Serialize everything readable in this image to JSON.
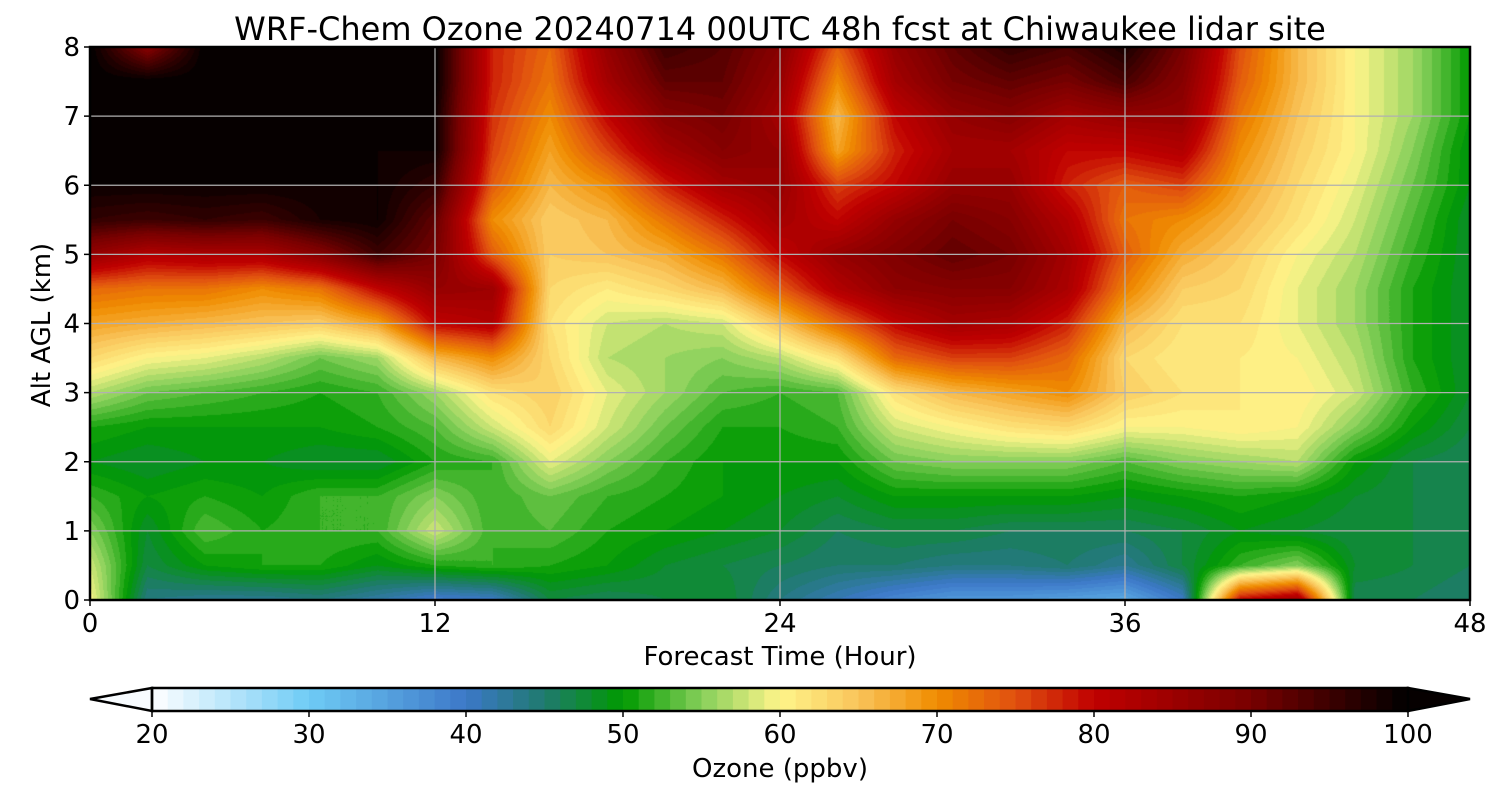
{
  "chart_data": {
    "type": "heatmap",
    "title": "WRF-Chem Ozone  20240714 00UTC 48h fcst at Chiwaukee lidar site",
    "xlabel": "Forecast Time (Hour)",
    "ylabel": "Alt AGL (km)",
    "xlim": [
      0,
      48
    ],
    "ylim": [
      0,
      8
    ],
    "x_ticks": [
      "0",
      "12",
      "24",
      "36",
      "48"
    ],
    "y_ticks": [
      "0",
      "1",
      "2",
      "3",
      "4",
      "5",
      "6",
      "7",
      "8"
    ],
    "grid": true,
    "colorbar": {
      "label": "Ozone  (ppbv)",
      "min": 20,
      "max": 100,
      "step": 1,
      "extend": "both",
      "ticks": [
        "20",
        "30",
        "40",
        "50",
        "60",
        "70",
        "80",
        "90",
        "100"
      ],
      "colormap": [
        [
          20,
          "#ffffff"
        ],
        [
          30,
          "#6ecbf5"
        ],
        [
          40,
          "#3c78c8"
        ],
        [
          45,
          "#1f7a6e"
        ],
        [
          50,
          "#009a00"
        ],
        [
          55,
          "#86cf5a"
        ],
        [
          60,
          "#fff58a"
        ],
        [
          65,
          "#f9c45a"
        ],
        [
          70,
          "#f08c00"
        ],
        [
          75,
          "#e05010"
        ],
        [
          80,
          "#c00000"
        ],
        [
          90,
          "#780000"
        ],
        [
          100,
          "#000000"
        ]
      ]
    },
    "field_grid": {
      "x": [
        0,
        2,
        4,
        6,
        8,
        10,
        12,
        14,
        16,
        18,
        20,
        22,
        24,
        26,
        28,
        30,
        32,
        34,
        36,
        38,
        40,
        42,
        44,
        46,
        48
      ],
      "z": [
        0,
        0.5,
        1,
        1.5,
        2,
        2.5,
        3,
        3.5,
        4,
        4.5,
        5,
        5.5,
        6,
        6.5,
        7,
        7.5,
        8
      ],
      "values": [
        [
          60,
          44,
          43,
          43,
          44,
          42,
          39,
          40,
          47,
          46,
          47,
          48,
          44,
          41,
          38,
          36,
          36,
          35,
          34,
          40,
          80,
          85,
          46,
          46,
          45
        ],
        [
          58,
          47,
          50,
          51,
          51,
          49,
          51,
          52,
          51,
          50,
          48,
          47,
          46,
          45,
          45,
          44,
          44,
          45,
          43,
          47,
          52,
          55,
          48,
          47,
          46
        ],
        [
          55,
          48,
          53,
          51,
          52,
          52,
          58,
          52,
          53,
          51,
          50,
          49,
          48,
          46,
          47,
          47,
          46,
          46,
          46,
          47,
          49,
          48,
          47,
          47,
          46
        ],
        [
          52,
          50,
          51,
          50,
          52,
          52,
          55,
          52,
          54,
          52,
          51,
          50,
          49,
          48,
          50,
          50,
          50,
          50,
          49,
          50,
          51,
          50,
          48,
          47,
          46
        ],
        [
          49,
          48,
          49,
          49,
          48,
          48,
          51,
          52,
          59,
          55,
          52,
          50,
          50,
          50,
          54,
          55,
          55,
          55,
          53,
          55,
          56,
          57,
          50,
          47,
          46
        ],
        [
          51,
          50,
          50,
          50,
          50,
          51,
          53,
          58,
          63,
          58,
          54,
          51,
          51,
          52,
          58,
          60,
          62,
          63,
          60,
          60,
          61,
          60,
          55,
          50,
          47
        ],
        [
          57,
          54,
          53,
          52,
          51,
          52,
          56,
          62,
          64,
          59,
          56,
          53,
          52,
          53,
          62,
          66,
          68,
          70,
          64,
          62,
          61,
          61,
          58,
          52,
          48
        ],
        [
          63,
          60,
          59,
          57,
          54,
          56,
          66,
          70,
          63,
          57,
          56,
          55,
          57,
          62,
          73,
          76,
          76,
          73,
          63,
          61,
          61,
          60,
          57,
          51,
          48
        ],
        [
          68,
          67,
          66,
          65,
          64,
          68,
          80,
          82,
          62,
          58,
          57,
          58,
          65,
          73,
          80,
          84,
          83,
          78,
          66,
          62,
          62,
          59,
          56,
          51,
          48
        ],
        [
          73,
          72,
          72,
          70,
          72,
          80,
          86,
          85,
          63,
          61,
          63,
          66,
          74,
          82,
          87,
          88,
          88,
          83,
          71,
          64,
          63,
          59,
          56,
          51,
          48
        ],
        [
          86,
          82,
          83,
          83,
          88,
          95,
          90,
          74,
          64,
          65,
          67,
          72,
          80,
          86,
          89,
          92,
          90,
          84,
          74,
          67,
          64,
          60,
          57,
          52,
          48
        ],
        [
          96,
          95,
          96,
          95,
          98,
          99,
          92,
          70,
          64,
          66,
          72,
          78,
          84,
          80,
          86,
          90,
          88,
          82,
          72,
          70,
          66,
          62,
          58,
          53,
          48
        ],
        [
          99,
          99,
          99,
          99,
          99,
          99,
          96,
          74,
          66,
          70,
          78,
          84,
          86,
          76,
          80,
          86,
          86,
          78,
          74,
          76,
          68,
          63,
          59,
          54,
          49
        ],
        [
          100,
          100,
          100,
          100,
          100,
          99,
          99,
          76,
          68,
          76,
          84,
          88,
          86,
          68,
          78,
          84,
          84,
          80,
          80,
          82,
          70,
          64,
          60,
          55,
          49
        ],
        [
          100,
          100,
          100,
          100,
          100,
          100,
          99,
          77,
          70,
          80,
          88,
          90,
          84,
          66,
          80,
          86,
          88,
          84,
          86,
          86,
          72,
          65,
          60,
          56,
          50
        ],
        [
          100,
          100,
          100,
          100,
          100,
          100,
          100,
          78,
          72,
          84,
          92,
          92,
          86,
          70,
          84,
          90,
          92,
          90,
          94,
          88,
          74,
          66,
          60,
          56,
          50
        ],
        [
          100,
          88,
          100,
          100,
          100,
          100,
          100,
          78,
          73,
          86,
          95,
          93,
          88,
          74,
          86,
          92,
          96,
          94,
          98,
          90,
          75,
          66,
          60,
          56,
          50
        ]
      ]
    }
  }
}
